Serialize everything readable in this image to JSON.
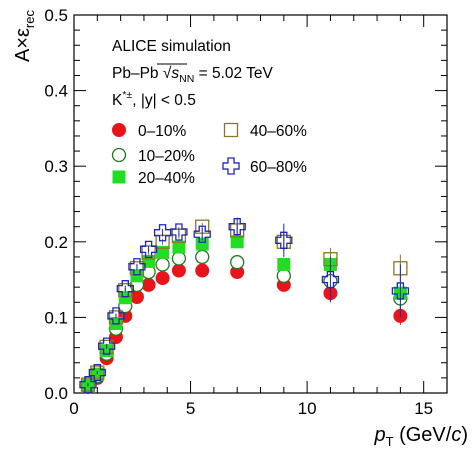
{
  "chart_data": {
    "type": "scatter",
    "title": "",
    "annotations": {
      "experiment": "ALICE simulation",
      "system_prefix": "Pb–Pb ",
      "sqrt_symbol": "√",
      "s_symbol": "s",
      "s_subscript": "NN",
      "energy": " = 5.02 TeV",
      "particle_base": "K",
      "particle_sup": "*±",
      "particle_cut": ", |y| < 0.5"
    },
    "xlabel": {
      "main": "p",
      "sub": "T",
      "unit_open": " (GeV/",
      "unit_var": "c",
      "unit_close": ")"
    },
    "ylabel": {
      "main": "A×ε",
      "sub": "rec"
    },
    "xlim": [
      0,
      16
    ],
    "ylim": [
      0,
      0.5
    ],
    "x_ticks": [
      0,
      5,
      10,
      15
    ],
    "x_tick_labels": [
      "0",
      "5",
      "10",
      "15"
    ],
    "y_ticks": [
      0,
      0.1,
      0.2,
      0.3,
      0.4,
      0.5
    ],
    "y_tick_labels": [
      "0.0",
      "0.1",
      "0.2",
      "0.3",
      "0.4",
      "0.5"
    ],
    "grid": false,
    "legend_placement": "top-left",
    "x": [
      0.6,
      1.0,
      1.4,
      1.8,
      2.2,
      2.7,
      3.2,
      3.8,
      4.5,
      5.5,
      7.0,
      9.0,
      11.0,
      14.0
    ],
    "series": [
      {
        "name": "0–10%",
        "marker": "filled-circle",
        "color": "#e8141c",
        "values": [
          0.008,
          0.02,
          0.046,
          0.074,
          0.102,
          0.127,
          0.143,
          0.152,
          0.162,
          0.162,
          0.16,
          0.143,
          0.132,
          0.102
        ],
        "errors": [
          0.002,
          0.002,
          0.003,
          0.003,
          0.003,
          0.003,
          0.003,
          0.003,
          0.003,
          0.003,
          0.004,
          0.006,
          0.01,
          0.012
        ]
      },
      {
        "name": "10–20%",
        "marker": "open-circle",
        "color": "#1e7a1e",
        "values": [
          0.009,
          0.022,
          0.052,
          0.085,
          0.115,
          0.143,
          0.16,
          0.17,
          0.178,
          0.18,
          0.173,
          0.155,
          0.148,
          0.125
        ],
        "errors": [
          0.002,
          0.002,
          0.003,
          0.003,
          0.003,
          0.003,
          0.003,
          0.003,
          0.003,
          0.004,
          0.005,
          0.008,
          0.012,
          0.015
        ]
      },
      {
        "name": "20–40%",
        "marker": "filled-square",
        "color": "#22dd22",
        "values": [
          0.01,
          0.025,
          0.056,
          0.092,
          0.126,
          0.155,
          0.174,
          0.186,
          0.193,
          0.197,
          0.2,
          0.17,
          0.17,
          0.132
        ],
        "errors": [
          0.002,
          0.002,
          0.003,
          0.003,
          0.003,
          0.003,
          0.003,
          0.003,
          0.004,
          0.004,
          0.005,
          0.008,
          0.012,
          0.015
        ]
      },
      {
        "name": "40–60%",
        "marker": "open-square",
        "color": "#8b7528",
        "values": [
          0.011,
          0.027,
          0.061,
          0.1,
          0.136,
          0.165,
          0.186,
          0.2,
          0.208,
          0.22,
          0.215,
          0.2,
          0.177,
          0.165
        ],
        "errors": [
          0.002,
          0.002,
          0.003,
          0.003,
          0.003,
          0.004,
          0.004,
          0.004,
          0.004,
          0.005,
          0.007,
          0.012,
          0.015,
          0.018
        ]
      },
      {
        "name": "60–80%",
        "marker": "open-cross",
        "color": "#1e28b4",
        "values": [
          0.011,
          0.027,
          0.062,
          0.102,
          0.138,
          0.167,
          0.19,
          0.212,
          0.213,
          0.21,
          0.22,
          0.202,
          0.15,
          0.135
        ],
        "errors": [
          0.002,
          0.002,
          0.003,
          0.003,
          0.004,
          0.004,
          0.004,
          0.005,
          0.006,
          0.008,
          0.012,
          0.022,
          0.03,
          0.035
        ]
      }
    ]
  }
}
